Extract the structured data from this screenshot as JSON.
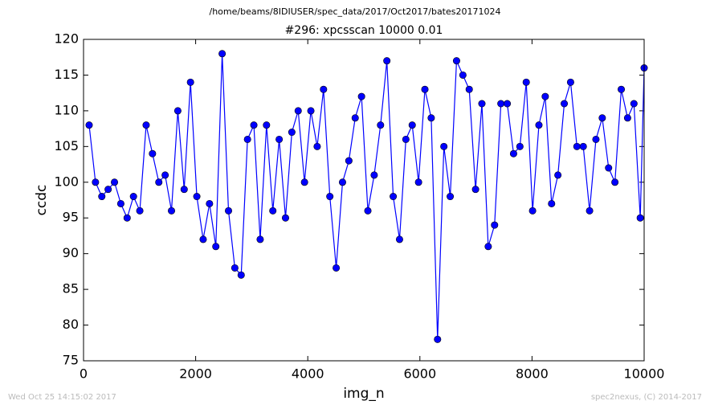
{
  "suptitle": "/home/beams/8IDIUSER/spec_data/2017/Oct2017/bates20171024",
  "footer": {
    "timestamp": "Wed Oct 25 14:15:02 2017",
    "credit": "spec2nexus, (C) 2014-2017"
  },
  "chart_data": {
    "type": "line",
    "title": "#296: xpcsscan 10000 0.01",
    "x_label": "img_n",
    "y_label": "ccdc",
    "color": "#0000ff",
    "marker": true,
    "x": [
      100,
      213,
      326,
      439,
      552,
      665,
      778,
      891,
      1004,
      1117,
      1230,
      1343,
      1456,
      1569,
      1682,
      1795,
      1908,
      2021,
      2134,
      2247,
      2360,
      2473,
      2586,
      2699,
      2812,
      2925,
      3038,
      3151,
      3264,
      3377,
      3490,
      3603,
      3716,
      3829,
      3942,
      4055,
      4168,
      4281,
      4394,
      4507,
      4620,
      4733,
      4846,
      4959,
      5072,
      5185,
      5298,
      5411,
      5524,
      5637,
      5750,
      5863,
      5976,
      6089,
      6202,
      6315,
      6428,
      6541,
      6654,
      6767,
      6880,
      6993,
      7106,
      7219,
      7332,
      7445,
      7558,
      7671,
      7784,
      7897,
      8010,
      8123,
      8236,
      8349,
      8462,
      8575,
      8688,
      8801,
      8914,
      9027,
      9140,
      9253,
      9366,
      9479,
      9592,
      9705,
      9818,
      9931,
      10000
    ],
    "values": [
      108,
      100,
      98,
      99,
      100,
      97,
      95,
      98,
      96,
      108,
      104,
      100,
      101,
      96,
      110,
      99,
      114,
      98,
      92,
      97,
      91,
      118,
      96,
      88,
      87,
      106,
      108,
      92,
      108,
      96,
      106,
      95,
      107,
      110,
      100,
      110,
      105,
      113,
      98,
      88,
      100,
      103,
      109,
      112,
      96,
      101,
      108,
      117,
      98,
      92,
      106,
      108,
      100,
      113,
      109,
      78,
      105,
      98,
      117,
      115,
      113,
      99,
      111,
      91,
      94,
      111,
      111,
      104,
      105,
      114,
      96,
      108,
      112,
      97,
      101,
      111,
      114,
      105,
      105,
      96,
      106,
      109,
      102,
      100,
      113,
      109,
      111,
      95,
      116
    ],
    "xlim": [
      0,
      10000
    ],
    "xticks": [
      0,
      2000,
      4000,
      6000,
      8000,
      10000
    ],
    "ylim": [
      75,
      120
    ],
    "yticks": [
      75,
      80,
      85,
      90,
      95,
      100,
      105,
      110,
      115,
      120
    ]
  }
}
